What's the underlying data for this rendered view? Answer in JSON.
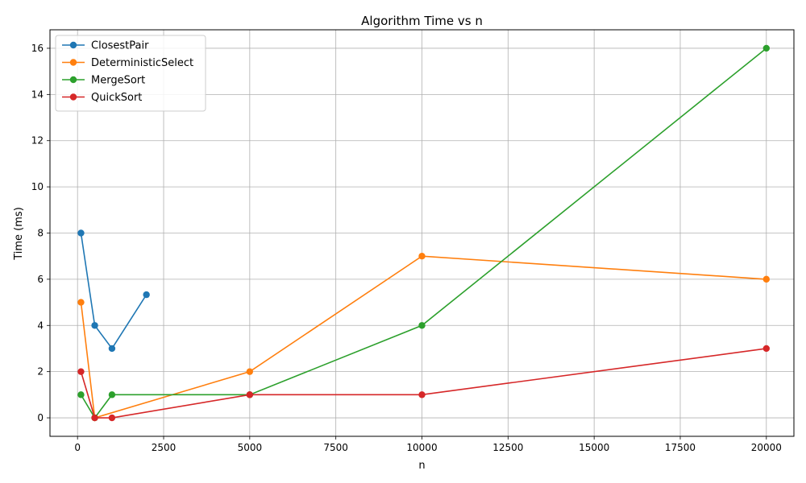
{
  "chart_data": {
    "type": "line",
    "title": "Algorithm Time vs n",
    "xlabel": "n",
    "ylabel": "Time (ms)",
    "xlim": [
      -800,
      20800
    ],
    "ylim": [
      -0.8,
      16.8
    ],
    "xticks": [
      0,
      2500,
      5000,
      7500,
      10000,
      12500,
      15000,
      17500,
      20000
    ],
    "yticks": [
      0,
      2,
      4,
      6,
      8,
      10,
      12,
      14,
      16
    ],
    "grid": true,
    "legend_position": "top-left",
    "series": [
      {
        "name": "ClosestPair",
        "color": "#1f77b4",
        "points": [
          [
            100,
            8
          ],
          [
            500,
            4
          ],
          [
            1000,
            3
          ],
          [
            2000,
            5.33
          ]
        ]
      },
      {
        "name": "DeterministicSelect",
        "color": "#ff7f0e",
        "points": [
          [
            100,
            5
          ],
          [
            500,
            0
          ],
          [
            5000,
            2
          ],
          [
            10000,
            7
          ],
          [
            20000,
            6
          ]
        ]
      },
      {
        "name": "MergeSort",
        "color": "#2ca02c",
        "points": [
          [
            100,
            1
          ],
          [
            500,
            0
          ],
          [
            1000,
            1
          ],
          [
            5000,
            1
          ],
          [
            10000,
            4
          ],
          [
            20000,
            16
          ]
        ]
      },
      {
        "name": "QuickSort",
        "color": "#d62728",
        "points": [
          [
            100,
            2
          ],
          [
            500,
            0
          ],
          [
            1000,
            0
          ],
          [
            5000,
            1
          ],
          [
            10000,
            1
          ],
          [
            20000,
            3
          ]
        ]
      }
    ]
  }
}
